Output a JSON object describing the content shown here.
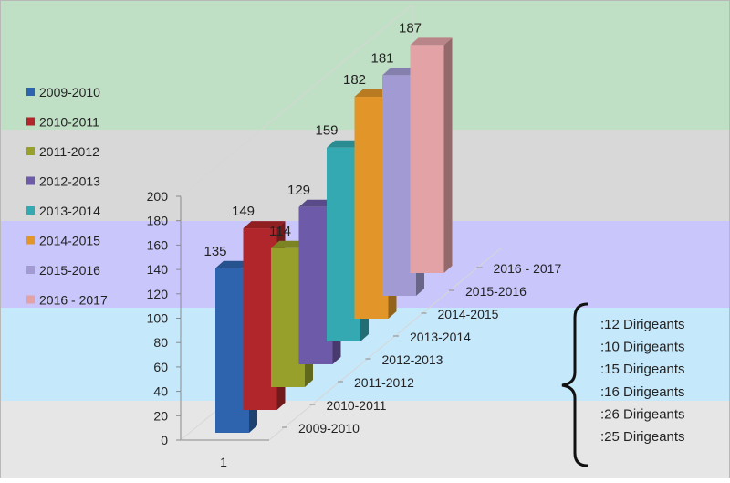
{
  "chart_data": {
    "type": "bar",
    "categories": [
      "2009-2010",
      "2010-2011",
      "2011-2012",
      "2012-2013",
      "2013-2014",
      "2014-2015",
      "2015-2016",
      "2016 - 2017"
    ],
    "depth_axis_labels": [
      "2009-2010",
      "2010-2011",
      "2011-2012",
      "2012-2013",
      "2013-2014",
      "2014-2015",
      "2015-2016",
      "2016 - 2017"
    ],
    "x_category_label": "1",
    "values": [
      135,
      149,
      114,
      129,
      159,
      182,
      181,
      187
    ],
    "ylim": [
      0,
      200
    ],
    "yticks": [
      0,
      20,
      40,
      60,
      80,
      100,
      120,
      140,
      160,
      180,
      200
    ],
    "legend": {
      "placement": "left",
      "entries": [
        "2009-2010",
        "2010-2011",
        "2011-2012",
        "2012-2013",
        "2013-2014",
        "2014-2015",
        "2015-2016",
        "2016 - 2017"
      ]
    },
    "colors": [
      "#2e64ad",
      "#b0262a",
      "#97a02a",
      "#6d5aa8",
      "#34a9b2",
      "#e2962a",
      "#a29bd3",
      "#e3a2a6"
    ],
    "background_bands": [
      "#bfe0c4",
      "#d8d8d8",
      "#c9c6fb",
      "#c6e8fb",
      "#e6e6e6"
    ]
  },
  "annotation": {
    "lines": [
      ":12 Dirigeants",
      ":10 Dirigeants",
      ":15 Dirigeants",
      ":16 Dirigeants",
      ":26 Dirigeants",
      ":25 Dirigeants"
    ]
  }
}
